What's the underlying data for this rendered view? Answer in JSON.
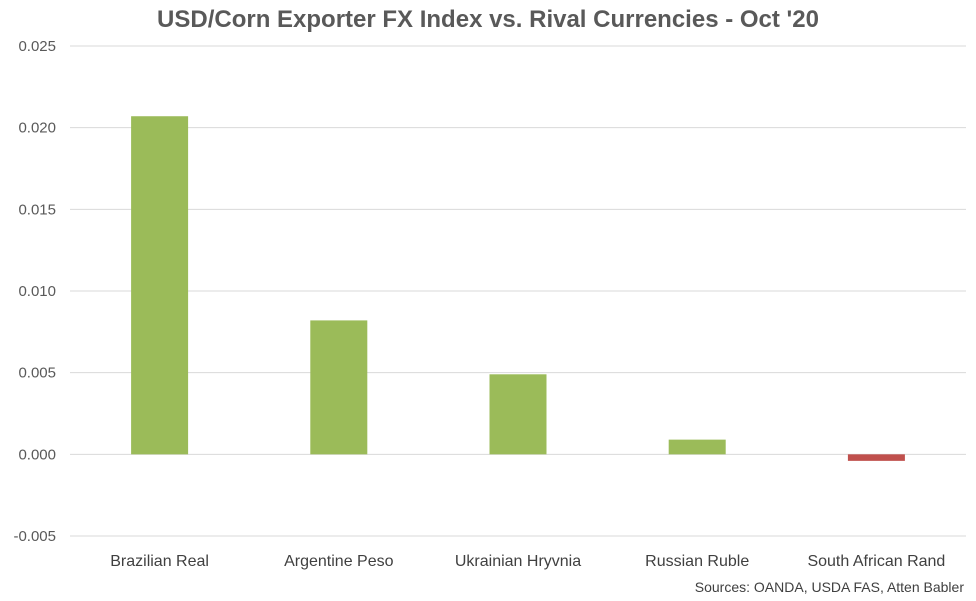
{
  "chart_data": {
    "type": "bar",
    "title": "USD/Corn Exporter FX Index vs. Rival Currencies - Oct '20",
    "source": "Sources: OANDA, USDA FAS, Atten Babler",
    "categories": [
      "Brazilian Real",
      "Argentine Peso",
      "Ukrainian Hryvnia",
      "Russian Ruble",
      "South African Rand"
    ],
    "values": [
      0.0207,
      0.0082,
      0.0049,
      0.0009,
      -0.0004
    ],
    "ylim": [
      -0.005,
      0.025
    ],
    "yticks": [
      "0.025",
      "0.020",
      "0.015",
      "0.010",
      "0.005",
      "0.000",
      "-0.005"
    ],
    "ytick_values": [
      0.025,
      0.02,
      0.015,
      0.01,
      0.005,
      0,
      -0.005
    ],
    "grid": true,
    "colors": {
      "positive": "#9bbb59",
      "negative": "#c0504d",
      "grid": "#d9d9d9"
    }
  }
}
